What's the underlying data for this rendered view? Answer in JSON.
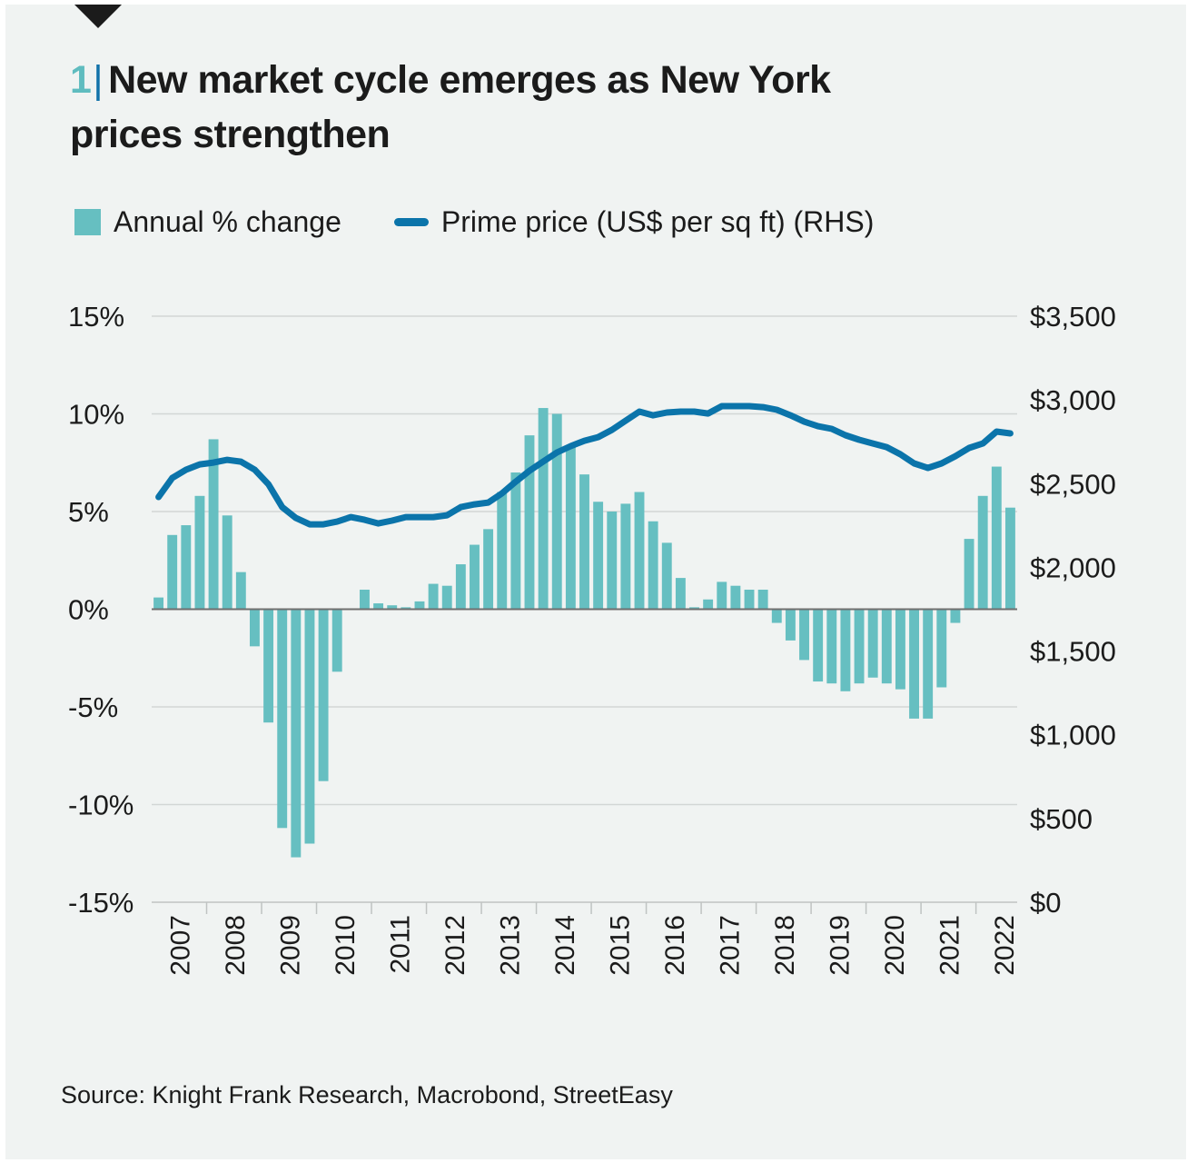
{
  "header": {
    "figure_number": "1",
    "separator": "|",
    "title_line1": "New market cycle emerges as New York",
    "title_line2": "prices strengthen"
  },
  "legend": {
    "bar_label": "Annual % change",
    "line_label": "Prime price (US$ per sq ft)  (RHS)"
  },
  "source": "Source: Knight Frank Research, Macrobond, StreetEasy",
  "colors": {
    "bar": "#66bfc1",
    "line": "#0b74aa",
    "accent_number": "#5fbcbf",
    "grid": "#d2d6d5",
    "zero_line": "#6f6f6f",
    "background": "#f0f3f2"
  },
  "chart_data": {
    "type": "bar+line",
    "title": "New market cycle emerges as New York prices strengthen",
    "frequency": "quarterly",
    "x_start": "2007 Q1",
    "x_end": "2022 Q3",
    "xlabel": "",
    "year_labels": [
      "2007",
      "2008",
      "2009",
      "2010",
      "2011",
      "2012",
      "2013",
      "2014",
      "2015",
      "2016",
      "2017",
      "2018",
      "2019",
      "2020",
      "2021",
      "2022"
    ],
    "left_axis": {
      "label": "Annual % change",
      "ylim": [
        -15,
        15
      ],
      "ticks": [
        15,
        10,
        5,
        0,
        -5,
        -10,
        -15
      ],
      "tick_labels": [
        "15%",
        "10%",
        "5%",
        "0%",
        "-5%",
        "-10%",
        "-15%"
      ]
    },
    "right_axis": {
      "label": "Prime price (US$ per sq ft) (RHS)",
      "ylim": [
        0,
        3500
      ],
      "ticks": [
        3500,
        3000,
        2500,
        2000,
        1500,
        1000,
        500,
        0
      ],
      "tick_labels": [
        "$3,500",
        "$3,000",
        "$2,500",
        "$2,000",
        "$1,500",
        "$1,000",
        "$500",
        "$0"
      ]
    },
    "grid": true,
    "legend_position": "top-left",
    "series": [
      {
        "name": "Annual % change",
        "type": "bar",
        "axis": "left",
        "values": [
          0.6,
          3.8,
          4.3,
          5.8,
          8.7,
          4.8,
          1.9,
          -1.9,
          -5.8,
          -11.2,
          -12.7,
          -12.0,
          -8.8,
          -3.2,
          0.0,
          1.0,
          0.3,
          0.2,
          0.1,
          0.4,
          1.3,
          1.2,
          2.3,
          3.3,
          4.1,
          6.0,
          7.0,
          8.9,
          10.3,
          10.0,
          8.3,
          6.9,
          5.5,
          5.0,
          5.4,
          6.0,
          4.5,
          3.4,
          1.6,
          0.1,
          0.5,
          1.4,
          1.2,
          1.0,
          1.0,
          -0.7,
          -1.6,
          -2.6,
          -3.7,
          -3.8,
          -4.2,
          -3.8,
          -3.5,
          -3.8,
          -4.1,
          -5.6,
          -5.6,
          -4.0,
          -0.7,
          3.6,
          5.8,
          7.3,
          5.2
        ]
      },
      {
        "name": "Prime price (US$ per sq ft)",
        "type": "line",
        "axis": "right",
        "values": [
          2420,
          2534,
          2583,
          2615,
          2626,
          2642,
          2631,
          2583,
          2496,
          2360,
          2295,
          2257,
          2257,
          2273,
          2300,
          2284,
          2262,
          2279,
          2300,
          2300,
          2300,
          2311,
          2360,
          2376,
          2387,
          2442,
          2512,
          2577,
          2632,
          2686,
          2724,
          2756,
          2778,
          2821,
          2876,
          2930,
          2908,
          2925,
          2930,
          2930,
          2919,
          2963,
          2963,
          2963,
          2957,
          2941,
          2908,
          2870,
          2843,
          2827,
          2789,
          2762,
          2740,
          2718,
          2675,
          2621,
          2594,
          2621,
          2664,
          2713,
          2740,
          2811,
          2800
        ]
      }
    ]
  }
}
